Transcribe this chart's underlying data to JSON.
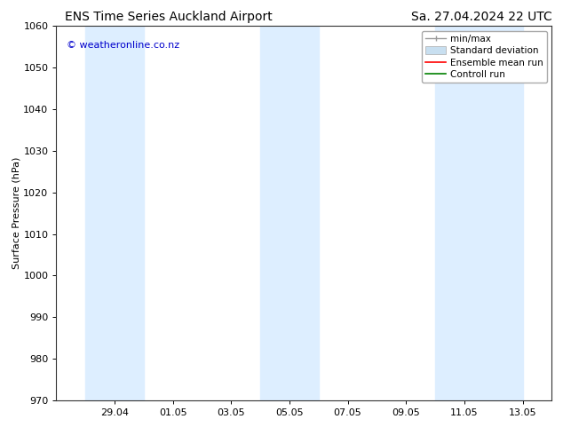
{
  "title_left": "ENS Time Series Auckland Airport",
  "title_right": "Sa. 27.04.2024 22 UTC",
  "ylabel": "Surface Pressure (hPa)",
  "ylim": [
    970,
    1060
  ],
  "yticks": [
    970,
    980,
    990,
    1000,
    1010,
    1020,
    1030,
    1040,
    1050,
    1060
  ],
  "watermark": "© weatheronline.co.nz",
  "watermark_color": "#0000cc",
  "background_color": "#ffffff",
  "plot_bg_color": "#ffffff",
  "shaded_bands": [
    {
      "x_start": 1,
      "x_end": 3,
      "color": "#ddeeff"
    },
    {
      "x_start": 7,
      "x_end": 9,
      "color": "#ddeeff"
    },
    {
      "x_start": 13,
      "x_end": 16,
      "color": "#ddeeff"
    }
  ],
  "xtick_positions": [
    2,
    4,
    6,
    8,
    10,
    12,
    14,
    16
  ],
  "xtick_labels": [
    "29.04",
    "01.05",
    "03.05",
    "05.05",
    "07.05",
    "09.05",
    "11.05",
    "13.05"
  ],
  "xlim": [
    0,
    17
  ],
  "legend_entries": [
    {
      "label": "min/max"
    },
    {
      "label": "Standard deviation"
    },
    {
      "label": "Ensemble mean run"
    },
    {
      "label": "Controll run"
    }
  ],
  "minmax_color": "#999999",
  "std_color": "#c8dff0",
  "ensemble_color": "#ff0000",
  "control_color": "#008000",
  "title_fontsize": 10,
  "axis_label_fontsize": 8,
  "tick_fontsize": 8,
  "legend_fontsize": 7.5,
  "watermark_fontsize": 8
}
